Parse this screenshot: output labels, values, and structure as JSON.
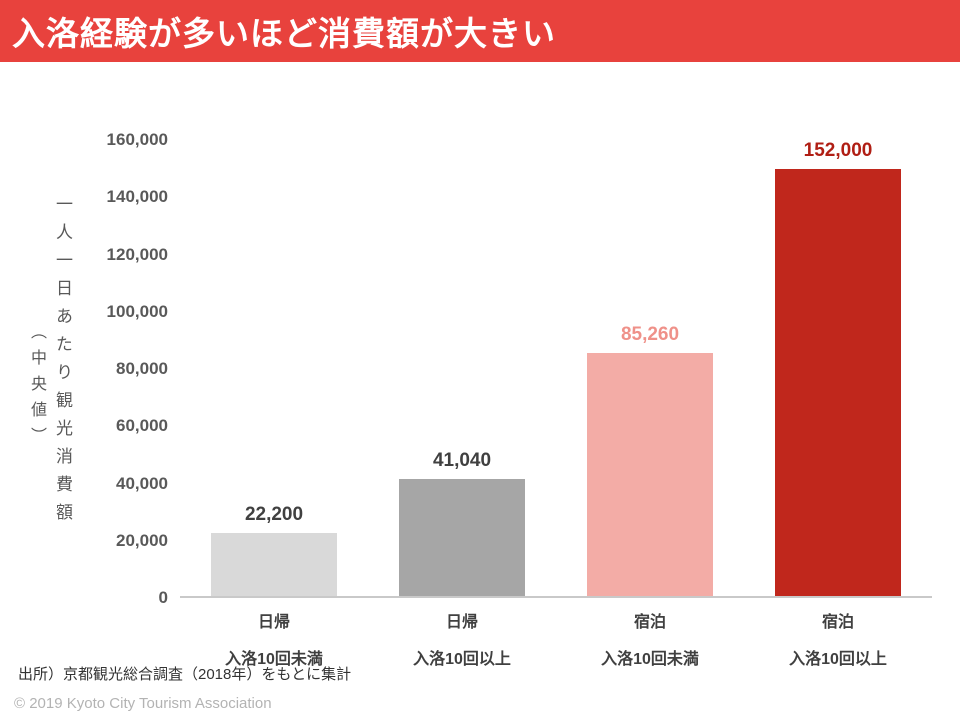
{
  "header": {
    "title": "入洛経験が多いほど消費額が大きい"
  },
  "chart_data": {
    "type": "bar",
    "title": "入洛経験が多いほど消費額が大きい",
    "ylabel": "一人一日あたり観光消費額",
    "ylabel_sub": "（中央値）",
    "ylim": [
      0,
      160000
    ],
    "yticks": [
      "160,000",
      "140,000",
      "120,000",
      "100,000",
      "80,000",
      "60,000",
      "40,000",
      "20,000",
      "0"
    ],
    "categories": [
      "日帰 入洛10回未満",
      "日帰 入洛10回以上",
      "宿泊 入洛10回未満",
      "宿泊 入洛10回以上"
    ],
    "values": [
      22200,
      41040,
      85260,
      152000
    ],
    "grid": false,
    "legend": false,
    "bars": [
      {
        "category_line1": "日帰",
        "category_line2": "入洛10回未満",
        "value": 22200,
        "value_label": "22,200",
        "bar_color": "#d9d9d9",
        "label_color": "#404040"
      },
      {
        "category_line1": "日帰",
        "category_line2": "入洛10回以上",
        "value": 41040,
        "value_label": "41,040",
        "bar_color": "#a6a6a6",
        "label_color": "#404040"
      },
      {
        "category_line1": "宿泊",
        "category_line2": "入洛10回未満",
        "value": 85260,
        "value_label": "85,260",
        "bar_color": "#f3aca6",
        "label_color": "#ef9189"
      },
      {
        "category_line1": "宿泊",
        "category_line2": "入洛10回以上",
        "value": 152000,
        "value_label": "152,000",
        "bar_color": "#c0271c",
        "label_color": "#b01e14"
      }
    ]
  },
  "footer": {
    "source": "出所）京都観光総合調査（2018年）をもとに集計",
    "copyright": "© 2019 Kyoto City Tourism Association"
  },
  "colors": {
    "header_bg": "#e8423d",
    "axis_text": "#595959",
    "baseline": "#c9c9c9"
  }
}
